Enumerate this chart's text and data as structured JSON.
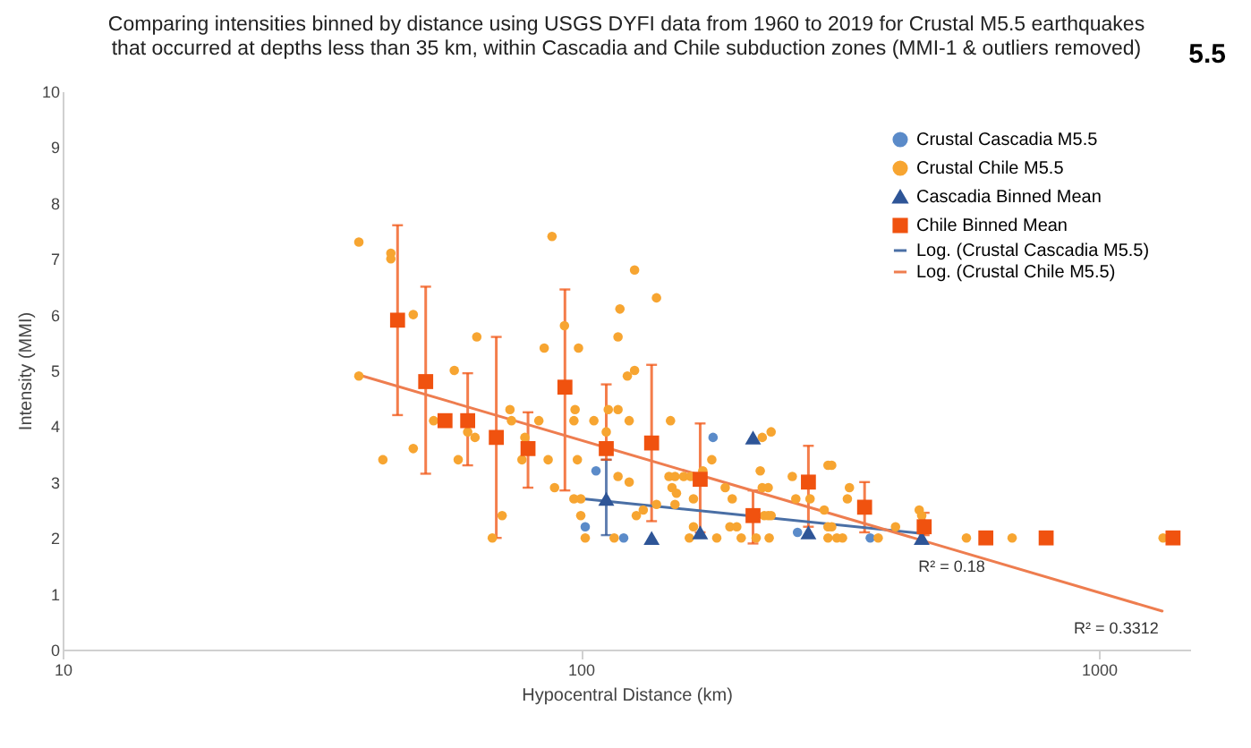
{
  "chart_data": {
    "type": "scatter",
    "title": "Comparing intensities binned by distance using USGS DYFI data from 1960 to 2019 for Crustal M5.5 earthquakes\nthat occurred at depths less than 35 km, within Cascadia and Chile subduction zones (MMI-1 & outliers removed)",
    "xlabel": "Hypocentral Distance (km)",
    "ylabel": "Intensity (MMI)",
    "log": "x",
    "xlim": [
      10,
      1500
    ],
    "xticks": [
      10,
      100,
      1000
    ],
    "ylim": [
      0,
      10
    ],
    "yticks": [
      0,
      1,
      2,
      3,
      4,
      5,
      6,
      7,
      8,
      9,
      10
    ],
    "legend": "top right",
    "annotations": [
      "5.5",
      {
        "text": "R² = 0.18",
        "x": 520,
        "y": 2.0
      },
      {
        "text": "R² = 0.3312",
        "x": 1080,
        "y": 0.9
      }
    ],
    "series": [
      {
        "name": "Crustal Cascadia M5.5",
        "marker": "circle",
        "color": "#5b8bc9",
        "x": [
          107,
          102,
          121,
          180,
          262,
          362
        ],
        "values": [
          3.2,
          2.2,
          2.0,
          3.8,
          2.1,
          2.0
        ]
      },
      {
        "name": "Crustal Chile M5.5",
        "marker": "circle",
        "color": "#f7a531",
        "x": [
          37.3,
          37.3,
          41.5,
          43,
          43,
          47.5,
          47.5,
          52,
          57,
          58,
          60.5,
          62.5,
          63,
          67.5,
          70.5,
          73,
          73.5,
          77,
          78,
          83,
          85,
          86.5,
          88,
          89,
          93,
          97,
          97.5,
          98.5,
          99,
          97,
          100,
          100,
          102,
          106,
          112,
          113,
          118,
          118,
          119,
          118,
          124,
          124,
          123,
          127,
          127,
          116,
          128,
          140,
          149,
          140,
          132,
          148,
          152,
          158,
          163,
          172,
          150,
          153,
          152,
          162,
          165,
          165,
          179,
          183,
          190,
          196,
          194,
          200,
          204,
          218,
          222,
          224,
          233,
          224,
          230,
          226,
          230,
          233,
          231,
          256,
          260,
          277,
          295,
          300,
          305,
          300,
          305,
          300,
          312,
          320,
          330,
          327,
          375,
          405,
          450,
          455,
          555,
          680,
          1330
        ],
        "values": [
          4.9,
          7.3,
          3.4,
          7.1,
          7.0,
          6.0,
          3.6,
          4.1,
          5.0,
          3.4,
          3.9,
          3.8,
          5.6,
          2.0,
          2.4,
          4.3,
          4.1,
          3.4,
          3.8,
          4.1,
          5.4,
          3.4,
          7.4,
          2.9,
          5.8,
          4.1,
          4.3,
          3.4,
          5.4,
          2.7,
          2.7,
          2.4,
          2.0,
          4.1,
          3.9,
          4.3,
          4.3,
          5.6,
          6.1,
          3.1,
          3.0,
          4.1,
          4.9,
          6.8,
          5.0,
          2.0,
          2.4,
          6.3,
          4.1,
          2.6,
          2.5,
          3.1,
          3.1,
          3.1,
          3.1,
          3.2,
          2.9,
          2.8,
          2.6,
          2.0,
          2.2,
          2.7,
          3.4,
          2.0,
          2.9,
          2.7,
          2.2,
          2.2,
          2.0,
          2.0,
          3.2,
          3.8,
          3.9,
          2.9,
          2.9,
          2.4,
          2.4,
          2.4,
          2.0,
          3.1,
          2.7,
          2.7,
          2.5,
          3.3,
          3.3,
          2.2,
          2.2,
          2.0,
          2.0,
          2.0,
          2.9,
          2.7,
          2.0,
          2.2,
          2.5,
          2.4,
          2.0,
          2.0,
          2.0
        ]
      },
      {
        "name": "Cascadia Binned Mean",
        "marker": "triangle",
        "color": "#2e5597",
        "x": [
          112,
          137,
          170,
          215,
          275,
          455
        ],
        "values": [
          2.7,
          2.0,
          2.1,
          3.8,
          2.1,
          2.0
        ],
        "errors": [
          [
            2.05,
            3.4
          ],
          null,
          null,
          null,
          null,
          null
        ]
      },
      {
        "name": "Chile Binned Mean",
        "marker": "square",
        "color": "#f0520f",
        "x": [
          44.3,
          50.2,
          54.7,
          60.5,
          68.7,
          79.1,
          93.2,
          112,
          137,
          170,
          215,
          275,
          353,
          460,
          605,
          791,
          1390
        ],
        "values": [
          5.9,
          4.8,
          4.1,
          4.1,
          3.8,
          3.6,
          4.7,
          3.6,
          3.7,
          3.05,
          2.4,
          3.0,
          2.55,
          2.2,
          2.0,
          2.0,
          2.0
        ],
        "errors": [
          [
            4.2,
            7.6
          ],
          [
            3.15,
            6.5
          ],
          null,
          [
            3.3,
            4.95
          ],
          [
            2.0,
            5.6
          ],
          [
            2.9,
            4.25
          ],
          [
            2.85,
            6.45
          ],
          [
            3.4,
            4.75
          ],
          [
            2.3,
            5.1
          ],
          [
            2.1,
            4.05
          ],
          [
            1.9,
            2.85
          ],
          [
            2.2,
            3.65
          ],
          [
            2.1,
            3.0
          ],
          [
            2.05,
            2.45
          ],
          null,
          null,
          null
        ]
      },
      {
        "name": "Log. (Crustal Cascadia M5.5)",
        "type": "line",
        "line_style": "solid",
        "color": "#4a6fa5",
        "x": [
          101,
          455
        ],
        "values": [
          2.7,
          2.08
        ]
      },
      {
        "name": "Log. (Crustal Chile M5.5)",
        "type": "line",
        "line_style": "solid",
        "color": "#ee7d4f",
        "x": [
          37.3,
          1325
        ],
        "values": [
          4.92,
          0.69
        ]
      }
    ]
  }
}
